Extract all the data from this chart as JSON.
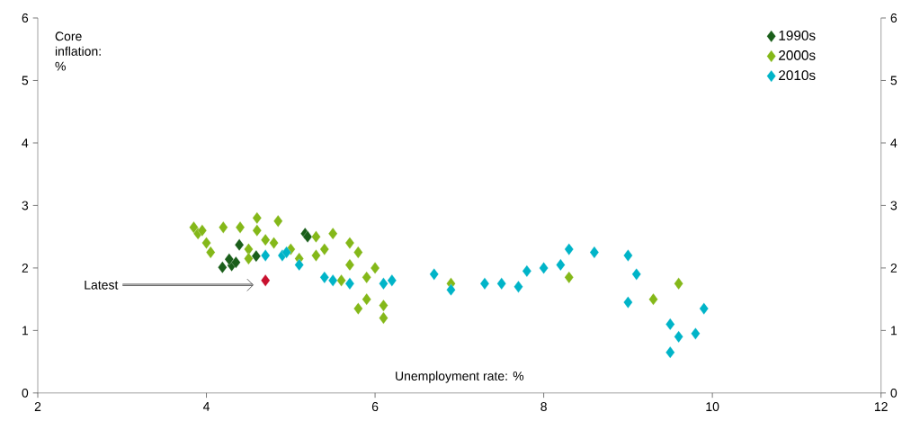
{
  "chart_data": {
    "type": "scatter",
    "xlabel": "Unemployment rate: %",
    "ylabel": "Core inflation: %",
    "xlim": [
      2,
      12
    ],
    "xticks": [
      2,
      4,
      6,
      8,
      10,
      12
    ],
    "ylim": [
      0,
      6
    ],
    "yticks": [
      0,
      1,
      2,
      3,
      4,
      5,
      6
    ],
    "y2lim": [
      0,
      6
    ],
    "y2ticks": [
      0,
      1,
      2,
      3,
      4,
      5,
      6
    ],
    "marker": "diamond",
    "grid": false,
    "legend": "top right",
    "annotations": [
      "Latest"
    ],
    "series": [
      {
        "name": "1990s",
        "color": "#1a5e1a",
        "x": [
          4.39,
          4.19,
          4.3,
          4.27,
          4.35,
          4.59,
          5.17,
          5.2
        ],
        "values": [
          2.37,
          2.01,
          2.04,
          2.14,
          2.09,
          2.19,
          2.55,
          2.5
        ]
      },
      {
        "name": "2000s",
        "color": "#84b819",
        "x": [
          3.85,
          3.9,
          3.95,
          4.0,
          4.05,
          4.2,
          4.4,
          4.6,
          4.6,
          4.85,
          4.5,
          4.5,
          4.7,
          4.8,
          5.0,
          5.1,
          5.3,
          5.4,
          5.3,
          5.5,
          5.6,
          5.7,
          5.7,
          5.8,
          5.8,
          5.9,
          5.9,
          6.0,
          6.1,
          6.1,
          6.9,
          8.3,
          9.3,
          9.6
        ],
        "values": [
          2.65,
          2.55,
          2.6,
          2.4,
          2.25,
          2.65,
          2.65,
          2.8,
          2.6,
          2.75,
          2.3,
          2.15,
          2.45,
          2.4,
          2.3,
          2.15,
          2.5,
          2.3,
          2.2,
          2.55,
          1.8,
          2.4,
          2.05,
          2.25,
          1.35,
          1.5,
          1.85,
          2.0,
          1.4,
          1.2,
          1.75,
          1.85,
          1.5,
          1.75
        ]
      },
      {
        "name": "2010s",
        "color": "#00b4c8",
        "x": [
          4.7,
          4.9,
          4.95,
          5.1,
          5.4,
          5.5,
          5.7,
          6.1,
          6.2,
          6.7,
          6.9,
          7.3,
          7.5,
          7.7,
          7.8,
          8.0,
          8.2,
          8.3,
          8.6,
          9.0,
          9.1,
          9.0,
          9.5,
          9.6,
          9.5,
          9.8,
          9.9
        ],
        "values": [
          2.2,
          2.2,
          2.25,
          2.05,
          1.85,
          1.8,
          1.75,
          1.75,
          1.8,
          1.9,
          1.65,
          1.75,
          1.75,
          1.7,
          1.95,
          2.0,
          2.05,
          2.3,
          2.25,
          2.2,
          1.9,
          1.45,
          1.1,
          0.9,
          0.65,
          0.95,
          1.35
        ]
      },
      {
        "color": "#c8102e",
        "x": [
          4.7
        ],
        "values": [
          1.8
        ]
      }
    ]
  }
}
